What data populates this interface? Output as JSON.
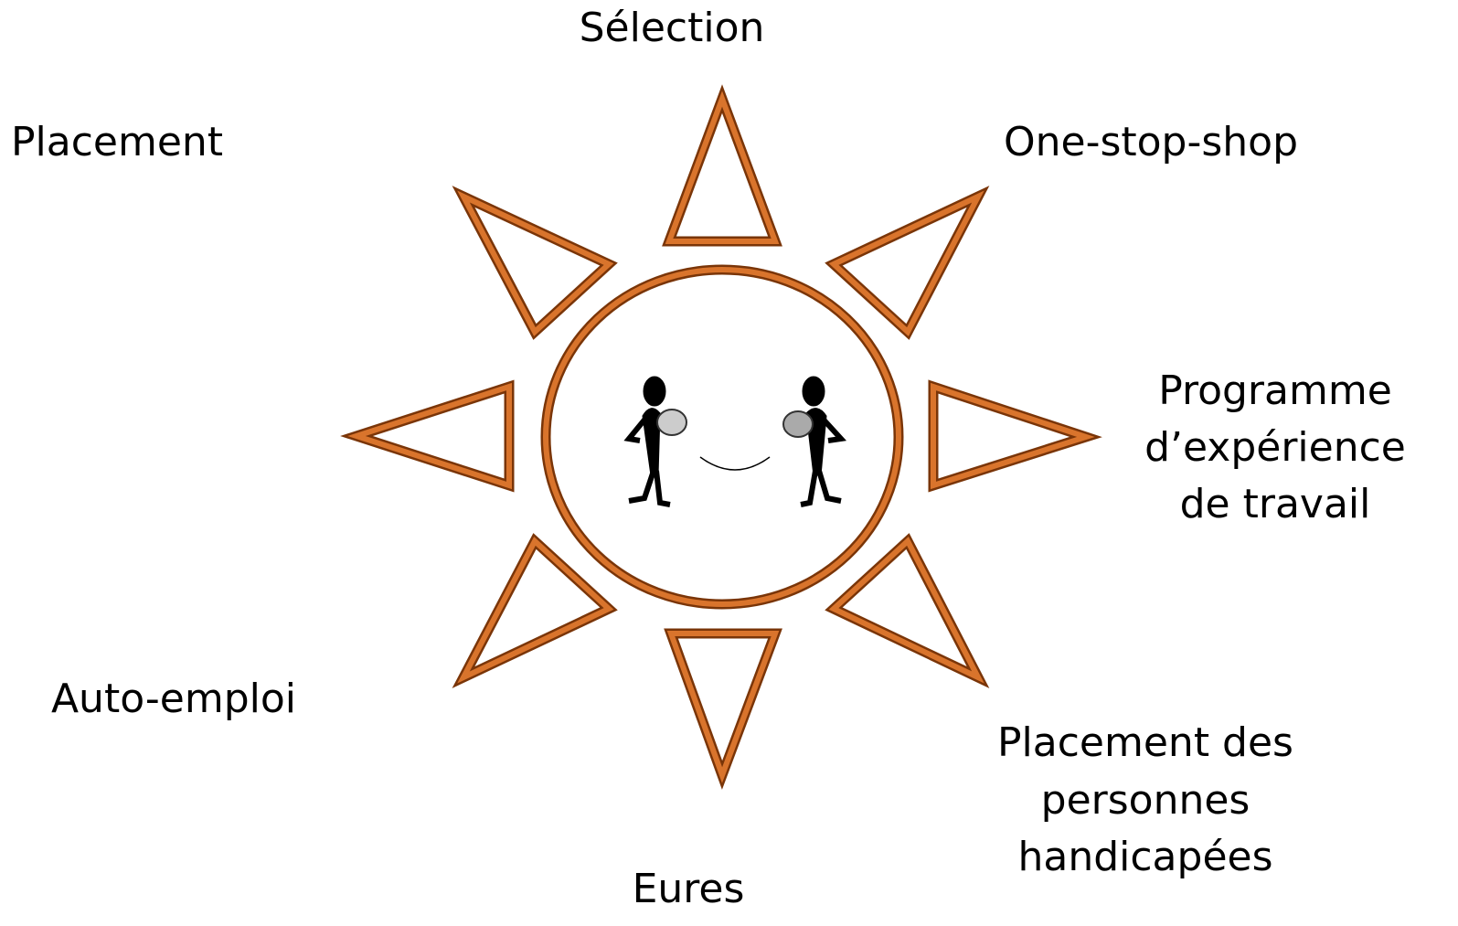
{
  "nodes": [
    {
      "lines": [
        "Sélection"
      ]
    },
    {
      "lines": [
        "Placement"
      ]
    },
    {
      "lines": [
        "One-stop-shop"
      ]
    },
    {
      "lines": [
        "Programme",
        "d’expérience",
        "de travail"
      ]
    },
    {
      "lines": [
        "Auto-emploi"
      ]
    },
    {
      "lines": [
        "Placement des",
        "personnes",
        "handicapées"
      ]
    },
    {
      "lines": [
        "Eures"
      ]
    }
  ]
}
